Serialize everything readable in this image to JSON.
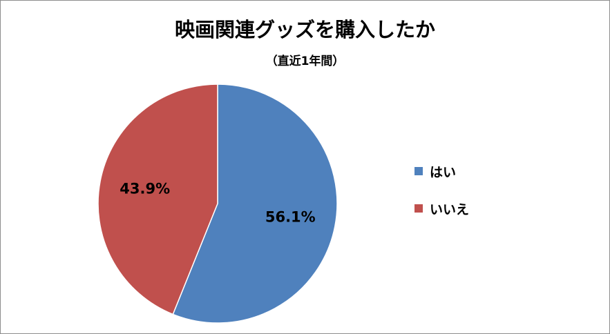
{
  "chart_data": {
    "type": "pie",
    "title": "映画関連グッズを購入したか",
    "subtitle": "（直近1年間）",
    "slices": [
      {
        "name": "はい",
        "value": 56.1,
        "label": "56.1%",
        "color": "#4f81bd"
      },
      {
        "name": "いいえ",
        "value": 43.9,
        "label": "43.9%",
        "color": "#c0504d"
      }
    ],
    "legend_position": "right",
    "start_angle": "12 o'clock",
    "direction": "clockwise"
  }
}
